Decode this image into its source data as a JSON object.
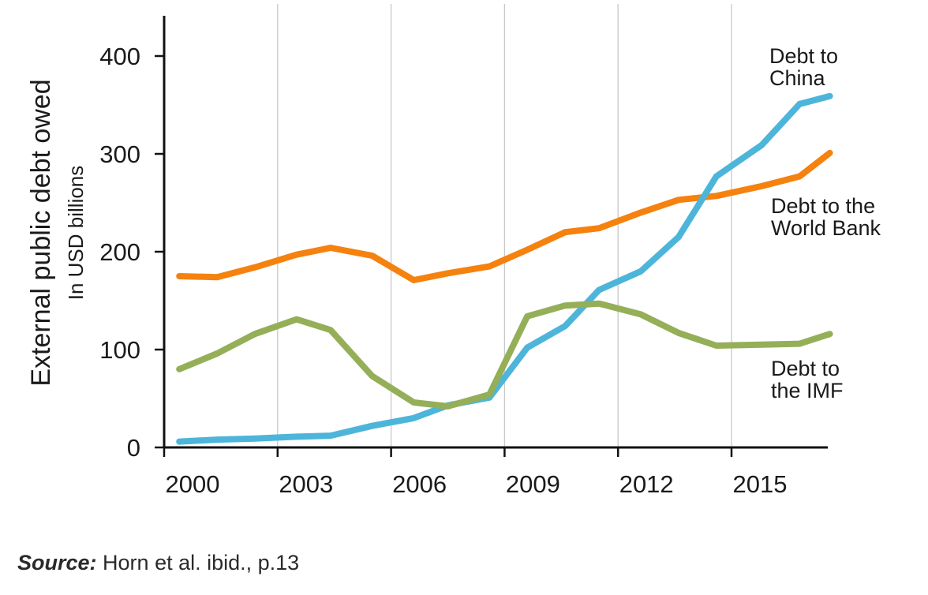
{
  "chart_data": {
    "type": "line",
    "ylabel": "External public debt owed",
    "ylabel_sub": "In USD billions",
    "ylim": [
      0,
      440
    ],
    "yticks": [
      0,
      100,
      200,
      300,
      400
    ],
    "xlim": [
      1999.8,
      2017.8
    ],
    "xticks": [
      2000,
      2003,
      2006,
      2009,
      2012,
      2015
    ],
    "grid_x": true,
    "series": [
      {
        "name": "Debt to the World Bank",
        "label_lines": [
          "Debt to the",
          "World Bank"
        ],
        "color": "#f5820f",
        "x": [
          2000.4,
          2001.4,
          2002.4,
          2003.5,
          2004.4,
          2005.5,
          2006.6,
          2007.5,
          2008.6,
          2009.6,
          2010.6,
          2011.5,
          2012.6,
          2013.6,
          2014.6,
          2015.8,
          2016.8,
          2017.6
        ],
        "values": [
          175,
          174,
          184,
          197,
          204,
          196,
          171,
          178,
          185,
          202,
          220,
          224,
          240,
          253,
          257,
          267,
          277,
          301
        ]
      },
      {
        "name": "Debt to China",
        "label_lines": [
          "Debt to",
          "China"
        ],
        "color": "#4db5d9",
        "x": [
          2000.4,
          2001.4,
          2002.4,
          2003.5,
          2004.4,
          2005.5,
          2006.6,
          2007.5,
          2008.6,
          2009.6,
          2010.6,
          2011.5,
          2012.6,
          2013.6,
          2014.6,
          2015.8,
          2016.8,
          2017.6
        ],
        "values": [
          6,
          8,
          9,
          11,
          12,
          22,
          30,
          43,
          51,
          102,
          124,
          161,
          180,
          215,
          277,
          309,
          351,
          359
        ]
      },
      {
        "name": "Debt to the IMF",
        "label_lines": [
          "Debt to",
          "the IMF"
        ],
        "color": "#94af58",
        "x": [
          2000.4,
          2001.4,
          2002.4,
          2003.5,
          2004.4,
          2005.5,
          2006.6,
          2007.5,
          2008.6,
          2009.6,
          2010.6,
          2011.5,
          2012.6,
          2013.6,
          2014.6,
          2015.8,
          2016.8,
          2017.6
        ],
        "values": [
          80,
          96,
          116,
          131,
          120,
          73,
          46,
          42,
          54,
          134,
          145,
          147,
          136,
          117,
          104,
          105,
          106,
          116
        ]
      }
    ]
  },
  "source": {
    "label": "Source:",
    "text": "Horn et al. ibid., p.13"
  }
}
